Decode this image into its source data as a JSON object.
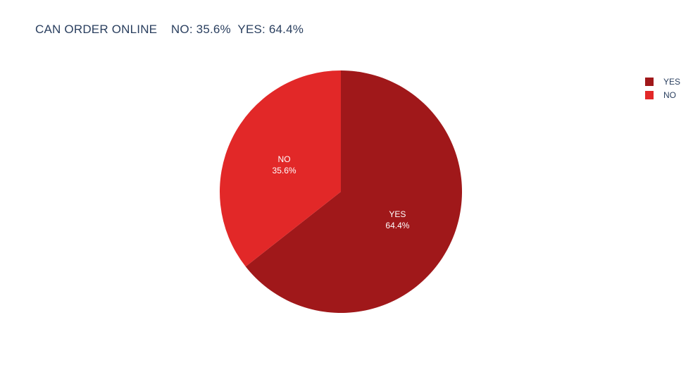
{
  "chart_data": {
    "type": "pie",
    "title": "CAN ORDER ONLINE    NO: 35.6%  YES: 64.4%",
    "slices": [
      {
        "label": "YES",
        "value": 64.4,
        "text": "64.4%",
        "color": "#a0181a"
      },
      {
        "label": "NO",
        "value": 35.6,
        "text": "35.6%",
        "color": "#e22828"
      }
    ],
    "legend": {
      "placement": "top-right",
      "items": [
        {
          "label": "YES",
          "color": "#a0181a"
        },
        {
          "label": "NO",
          "color": "#e22828"
        }
      ]
    }
  }
}
